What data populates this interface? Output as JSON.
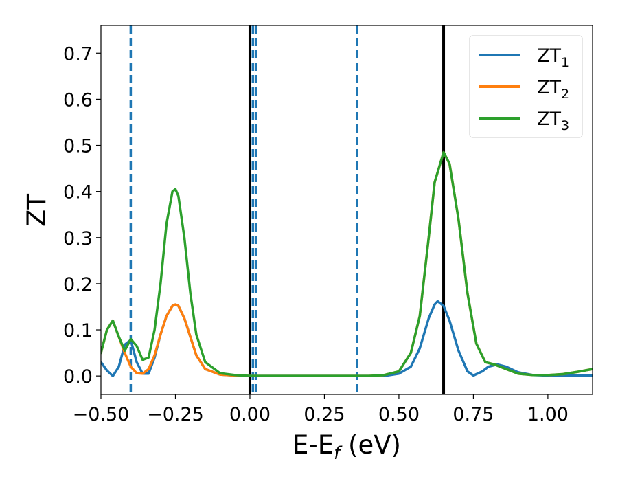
{
  "chart_data": {
    "type": "line",
    "xlabel": {
      "main": "E-E",
      "sub": "f",
      "unit": " (eV)"
    },
    "ylabel": "ZT",
    "xlim": [
      -0.5,
      1.15
    ],
    "ylim": [
      -0.04,
      0.76
    ],
    "xticks": [
      -0.5,
      -0.25,
      0.0,
      0.25,
      0.5,
      0.75,
      1.0
    ],
    "xtick_labels": [
      "−0.50",
      "−0.25",
      "0.00",
      "0.25",
      "0.50",
      "0.75",
      "1.00"
    ],
    "yticks": [
      0.0,
      0.1,
      0.2,
      0.3,
      0.4,
      0.5,
      0.6,
      0.7
    ],
    "ytick_labels": [
      "0.0",
      "0.1",
      "0.2",
      "0.3",
      "0.4",
      "0.5",
      "0.6",
      "0.7"
    ],
    "grid": false,
    "legend_position": "top-right",
    "series": [
      {
        "name": "ZT",
        "name_sub": "1",
        "color": "#1f77b4",
        "x": [
          -0.5,
          -0.48,
          -0.46,
          -0.44,
          -0.42,
          -0.4,
          -0.38,
          -0.36,
          -0.34,
          -0.32,
          -0.3,
          -0.28,
          -0.26,
          -0.25,
          -0.24,
          -0.22,
          -0.2,
          -0.18,
          -0.15,
          -0.1,
          -0.05,
          0.0,
          0.05,
          0.1,
          0.2,
          0.3,
          0.4,
          0.45,
          0.5,
          0.54,
          0.57,
          0.6,
          0.62,
          0.63,
          0.65,
          0.67,
          0.7,
          0.73,
          0.75,
          0.78,
          0.8,
          0.83,
          0.86,
          0.9,
          0.95,
          1.0,
          1.05,
          1.1,
          1.15
        ],
        "y": [
          0.03,
          0.012,
          0.0,
          0.02,
          0.068,
          0.078,
          0.03,
          0.005,
          0.005,
          0.04,
          0.09,
          0.13,
          0.152,
          0.155,
          0.152,
          0.125,
          0.085,
          0.045,
          0.015,
          0.003,
          0.001,
          0.0,
          0.0,
          0.0,
          0.0,
          0.0,
          0.0,
          0.0,
          0.005,
          0.02,
          0.06,
          0.125,
          0.155,
          0.162,
          0.152,
          0.12,
          0.055,
          0.01,
          0.001,
          0.01,
          0.02,
          0.025,
          0.02,
          0.008,
          0.002,
          0.001,
          0.001,
          0.001,
          0.001
        ]
      },
      {
        "name": "ZT",
        "name_sub": "2",
        "color": "#ff7f0e",
        "x": [
          -0.5,
          -0.48,
          -0.46,
          -0.44,
          -0.42,
          -0.4,
          -0.38,
          -0.36,
          -0.34,
          -0.32,
          -0.3,
          -0.28,
          -0.26,
          -0.25,
          -0.24,
          -0.22,
          -0.2,
          -0.18,
          -0.15,
          -0.1,
          -0.05,
          0.0,
          0.05,
          0.1,
          0.2,
          0.3,
          0.4,
          0.45,
          0.5,
          0.54,
          0.57,
          0.6,
          0.62,
          0.65,
          0.67,
          0.7,
          0.73,
          0.76,
          0.79,
          0.82,
          0.86,
          0.9,
          0.95,
          1.0,
          1.05,
          1.1,
          1.15
        ],
        "y": [
          0.05,
          0.1,
          0.12,
          0.085,
          0.05,
          0.02,
          0.006,
          0.005,
          0.015,
          0.045,
          0.09,
          0.13,
          0.152,
          0.155,
          0.152,
          0.125,
          0.085,
          0.045,
          0.015,
          0.003,
          0.001,
          0.0,
          0.0,
          0.0,
          0.0,
          0.0,
          0.0,
          0.002,
          0.01,
          0.05,
          0.13,
          0.3,
          0.42,
          0.485,
          0.46,
          0.34,
          0.18,
          0.07,
          0.03,
          0.025,
          0.015,
          0.005,
          0.002,
          0.002,
          0.004,
          0.009,
          0.015
        ]
      },
      {
        "name": "ZT",
        "name_sub": "3",
        "color": "#2ca02c",
        "x": [
          -0.5,
          -0.48,
          -0.46,
          -0.44,
          -0.42,
          -0.4,
          -0.38,
          -0.36,
          -0.34,
          -0.32,
          -0.3,
          -0.28,
          -0.26,
          -0.25,
          -0.24,
          -0.22,
          -0.2,
          -0.18,
          -0.15,
          -0.1,
          -0.05,
          0.0,
          0.05,
          0.1,
          0.2,
          0.3,
          0.4,
          0.45,
          0.5,
          0.54,
          0.57,
          0.6,
          0.62,
          0.65,
          0.67,
          0.7,
          0.73,
          0.76,
          0.79,
          0.82,
          0.86,
          0.9,
          0.95,
          1.0,
          1.05,
          1.1,
          1.15
        ],
        "y": [
          0.05,
          0.1,
          0.12,
          0.085,
          0.055,
          0.08,
          0.065,
          0.035,
          0.04,
          0.1,
          0.2,
          0.33,
          0.4,
          0.405,
          0.39,
          0.3,
          0.18,
          0.09,
          0.03,
          0.006,
          0.002,
          0.0,
          0.0,
          0.0,
          0.0,
          0.0,
          0.0,
          0.002,
          0.01,
          0.05,
          0.13,
          0.3,
          0.42,
          0.485,
          0.46,
          0.34,
          0.18,
          0.07,
          0.03,
          0.025,
          0.015,
          0.005,
          0.002,
          0.002,
          0.004,
          0.009,
          0.015
        ]
      }
    ],
    "vlines": [
      {
        "x": -0.4,
        "style": "dashed",
        "color": "#1f77b4"
      },
      {
        "x": 0.0,
        "style": "solid",
        "color": "#000000"
      },
      {
        "x": 0.01,
        "style": "dashed",
        "color": "#1f77b4"
      },
      {
        "x": 0.02,
        "style": "dashed",
        "color": "#1f77b4"
      },
      {
        "x": 0.36,
        "style": "dashed",
        "color": "#1f77b4"
      },
      {
        "x": 0.65,
        "style": "solid",
        "color": "#000000"
      }
    ]
  }
}
